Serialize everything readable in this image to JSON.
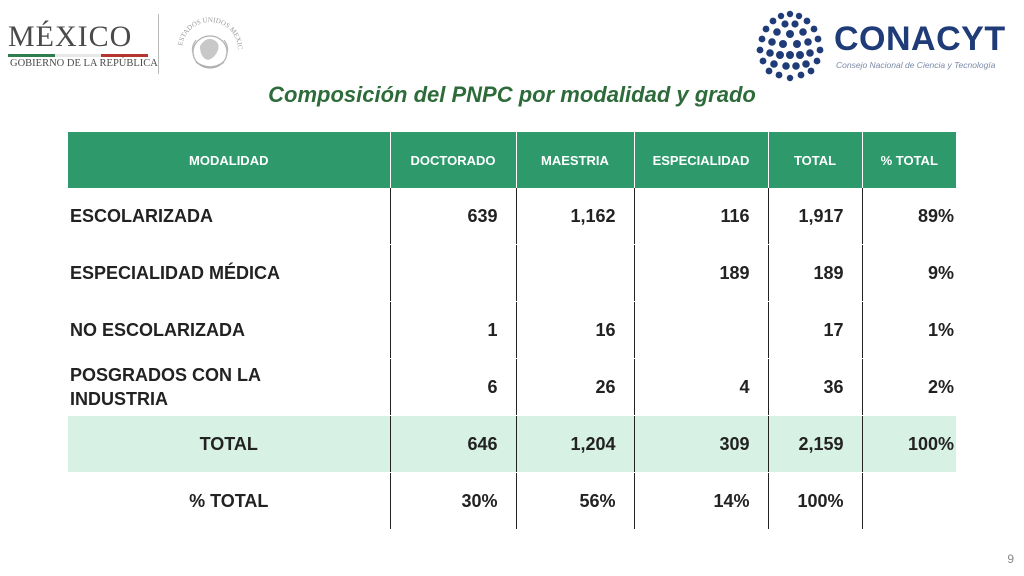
{
  "header": {
    "mexico_word": "MÉXICO",
    "mexico_sub": "GOBIERNO DE LA REPÚBLICA",
    "seal_text": "ESTADOS UNIDOS MEXICANOS",
    "conacyt_word": "CONACYT",
    "conacyt_sub": "Consejo Nacional de Ciencia y Tecnología",
    "colors": {
      "flag_green": "#2e7d4f",
      "flag_white": "#ffffff",
      "flag_red": "#b5362f",
      "conacyt_blue": "#1f3c78"
    }
  },
  "title": "Composición del PNPC por modalidad y grado",
  "table": {
    "headers": [
      "MODALIDAD",
      "DOCTORADO",
      "MAESTRIA",
      "ESPECIALIDAD",
      "TOTAL",
      "% TOTAL"
    ],
    "rows": [
      {
        "modalidad": "ESCOLARIZADA",
        "doctorado": "639",
        "maestria": "1,162",
        "especialidad": "116",
        "total": "1,917",
        "pct": "89%"
      },
      {
        "modalidad": "ESPECIALIDAD MÉDICA",
        "doctorado": "",
        "maestria": "",
        "especialidad": "189",
        "total": "189",
        "pct": "9%"
      },
      {
        "modalidad": "NO ESCOLARIZADA",
        "doctorado": "1",
        "maestria": "16",
        "especialidad": "",
        "total": "17",
        "pct": "1%"
      },
      {
        "modalidad": "POSGRADOS CON LA INDUSTRIA",
        "doctorado": "6",
        "maestria": "26",
        "especialidad": "4",
        "total": "36",
        "pct": "2%"
      }
    ],
    "total_row": {
      "label": "TOTAL",
      "doctorado": "646",
      "maestria": "1,204",
      "especialidad": "309",
      "total": "2,159",
      "pct": "100%"
    },
    "pct_row": {
      "label": "% TOTAL",
      "doctorado": "30%",
      "maestria": "56%",
      "especialidad": "14%",
      "total": "100%",
      "pct": ""
    },
    "colors": {
      "header_bg": "#2e9a6c",
      "total_bg": "#d7f2e4"
    }
  },
  "page_number": "9"
}
